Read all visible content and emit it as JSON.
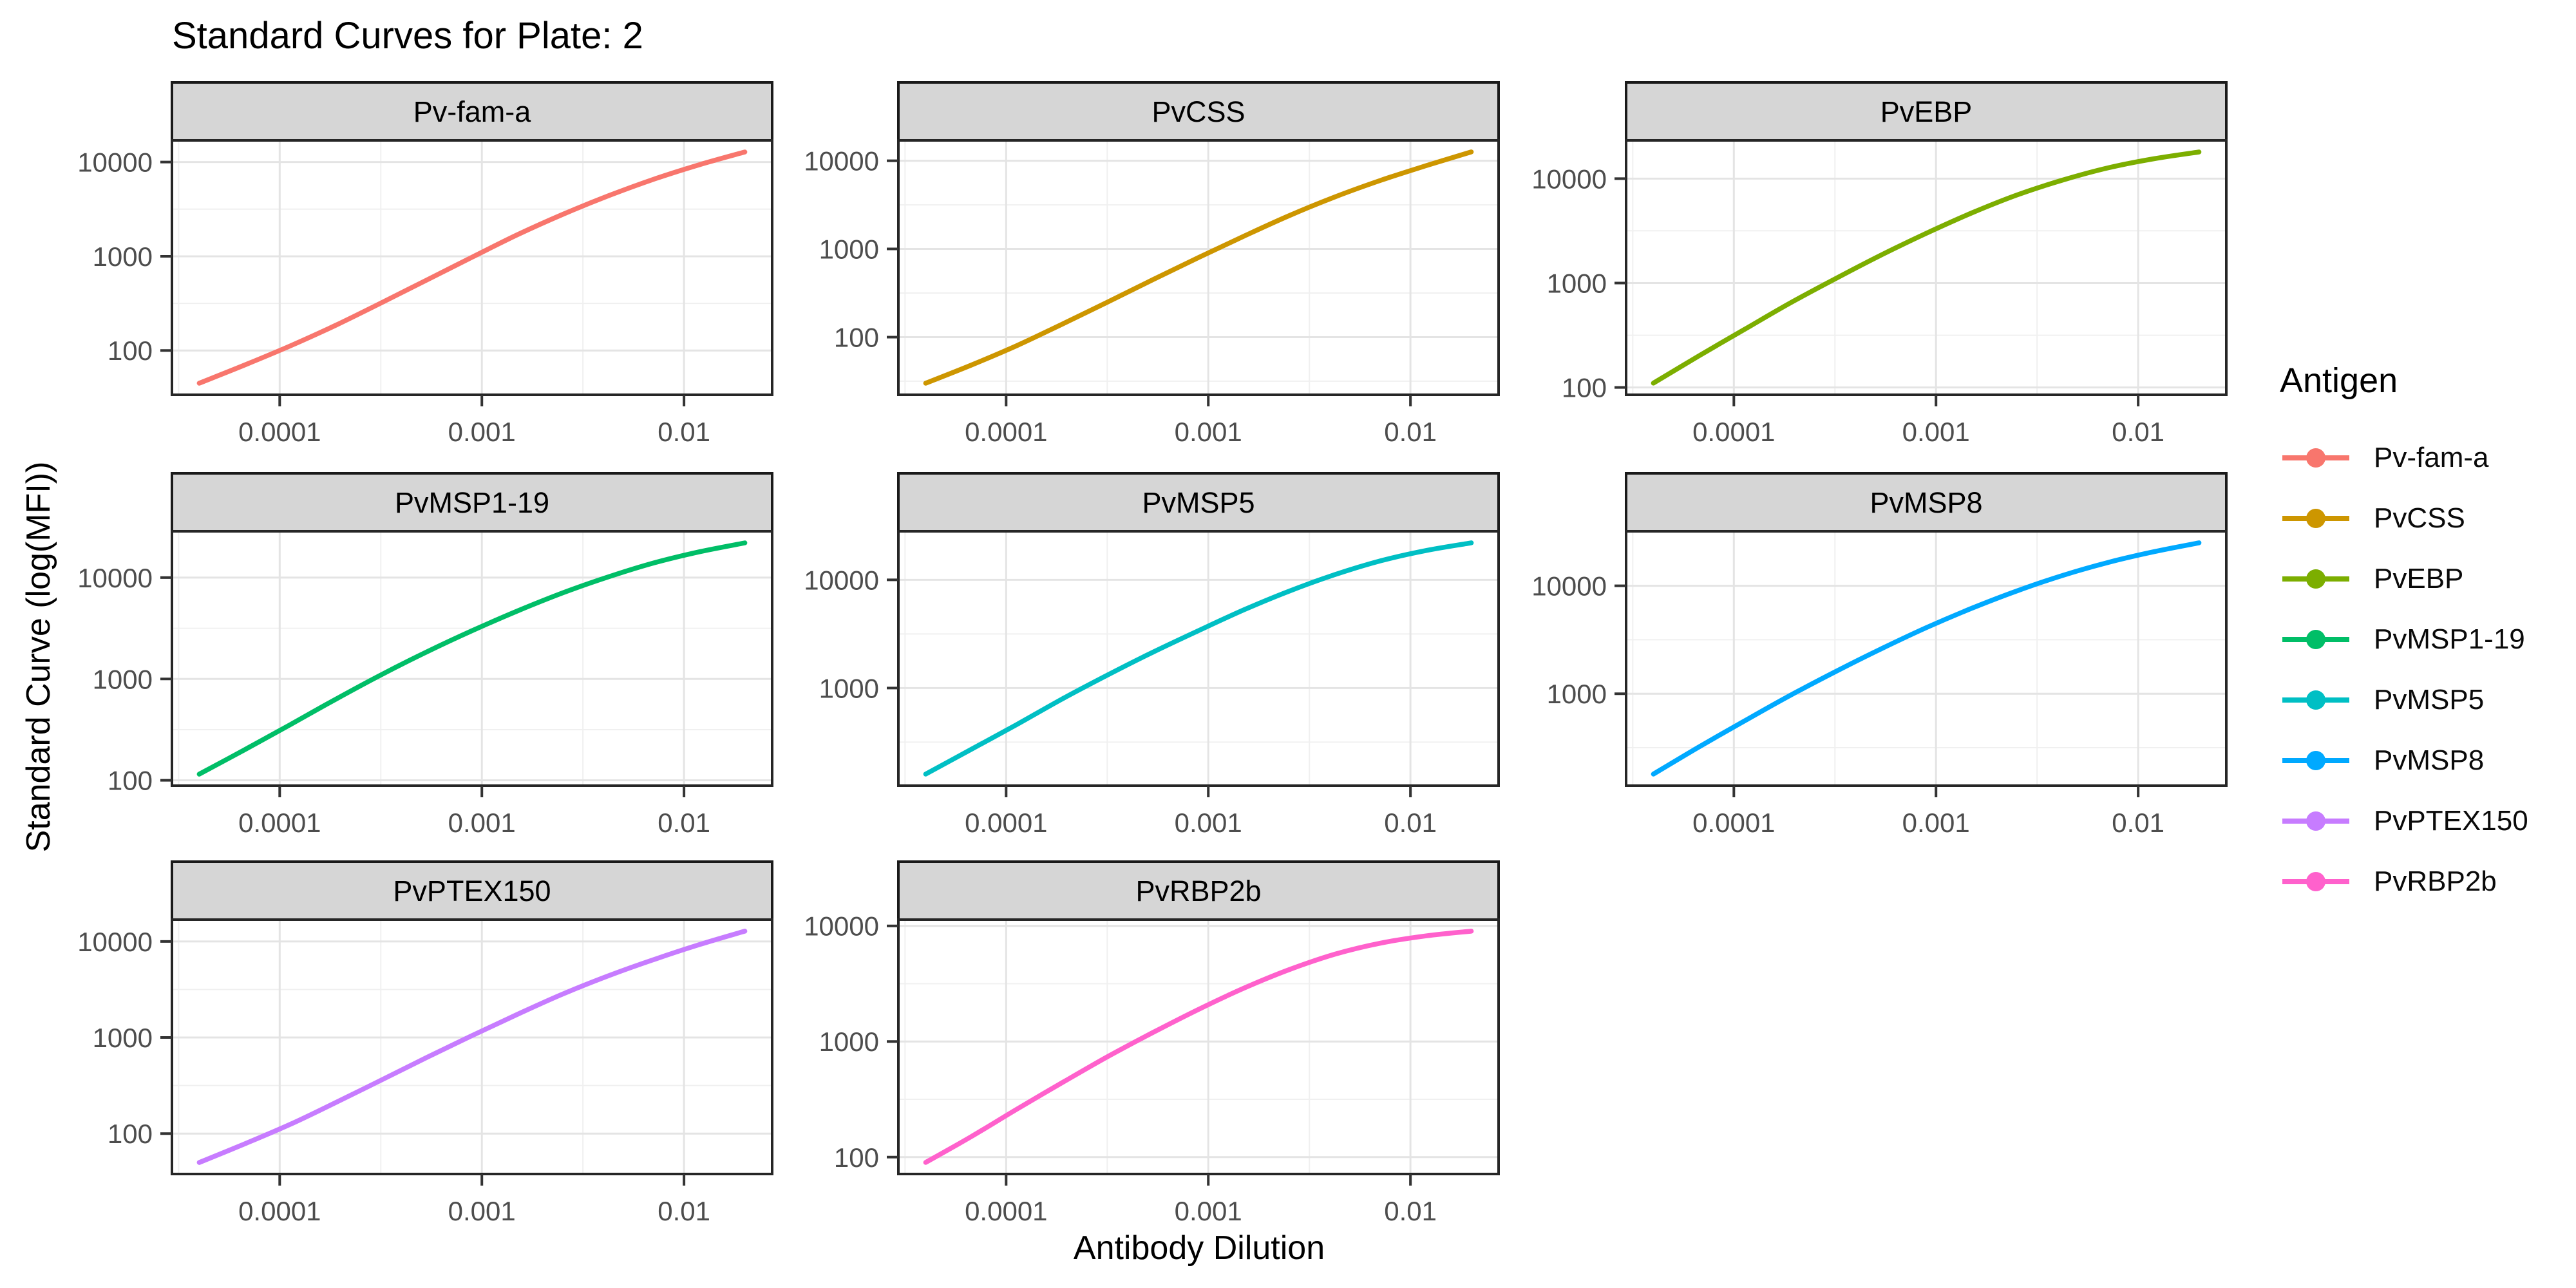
{
  "chart_data": {
    "type": "line",
    "title": "Standard Curves for Plate: 2",
    "xlabel": "Antibody Dilution",
    "ylabel": "Standard Curve (log(MFI))",
    "x_scale": "log10",
    "y_scale": "log10",
    "grid": "major-and-minor",
    "legend": {
      "title": "Antigen",
      "position": "right"
    },
    "xlim_log": [
      -4.533,
      -1.564
    ],
    "x_ticks": [
      {
        "value": 0.0001,
        "label": "0.0001"
      },
      {
        "value": 0.001,
        "label": "0.001"
      },
      {
        "value": 0.01,
        "label": "0.01"
      }
    ],
    "x": [
      4e-05,
      6.7e-05,
      0.000113,
      0.000189,
      0.000318,
      0.000534,
      0.000897,
      0.001506,
      0.002528,
      0.004245,
      0.007128,
      0.011969,
      0.02
    ],
    "facets": [
      {
        "name": "Pv-fam-a",
        "color": "#F8766D",
        "ylim_log": [
          1.53,
          4.23
        ],
        "y_ticks": [
          "100",
          "1000",
          "10000"
        ],
        "mfi": [
          45,
          70,
          112,
          185,
          320,
          560,
          980,
          1700,
          2800,
          4400,
          6600,
          9400,
          12800
        ]
      },
      {
        "name": "PvCSS",
        "color": "#CD9600",
        "ylim_log": [
          1.346,
          4.231
        ],
        "y_ticks": [
          "100",
          "1000",
          "10000"
        ],
        "mfi": [
          30,
          48,
          80,
          140,
          250,
          450,
          800,
          1400,
          2400,
          3900,
          6000,
          8800,
          12600
        ]
      },
      {
        "name": "PvEBP",
        "color": "#7CAE00",
        "ylim_log": [
          1.93,
          4.366
        ],
        "y_ticks": [
          "100",
          "1000",
          "10000"
        ],
        "mfi": [
          110,
          200,
          360,
          640,
          1100,
          1850,
          3000,
          4700,
          7000,
          9700,
          12700,
          15500,
          18000
        ]
      },
      {
        "name": "PvMSP1-19",
        "color": "#00BE67",
        "ylim_log": [
          1.947,
          4.457
        ],
        "y_ticks": [
          "100",
          "1000",
          "10000"
        ],
        "mfi": [
          115,
          200,
          355,
          630,
          1100,
          1850,
          3000,
          4700,
          7100,
          10200,
          14000,
          18000,
          22000
        ]
      },
      {
        "name": "PvMSP5",
        "color": "#00BFC4",
        "ylim_log": [
          2.097,
          4.449
        ],
        "y_ticks": [
          "1000",
          "10000"
        ],
        "mfi": [
          160,
          270,
          460,
          790,
          1320,
          2150,
          3400,
          5300,
          7900,
          11200,
          15000,
          18700,
          22000
        ]
      },
      {
        "name": "PvMSP8",
        "color": "#00A9FF",
        "ylim_log": [
          2.148,
          4.505
        ],
        "y_ticks": [
          "1000",
          "10000"
        ],
        "mfi": [
          180,
          320,
          560,
          960,
          1600,
          2600,
          4100,
          6200,
          9000,
          12500,
          16500,
          20700,
          25000
        ]
      },
      {
        "name": "PvPTEX150",
        "color": "#C77CFF",
        "ylim_log": [
          1.579,
          4.227
        ],
        "y_ticks": [
          "100",
          "1000",
          "10000"
        ],
        "mfi": [
          50,
          78,
          125,
          210,
          360,
          620,
          1050,
          1750,
          2850,
          4400,
          6500,
          9300,
          12800
        ]
      },
      {
        "name": "PvRBP2b",
        "color": "#FF61CC",
        "ylim_log": [
          1.854,
          4.054
        ],
        "y_ticks": [
          "100",
          "1000",
          "10000"
        ],
        "mfi": [
          90,
          150,
          260,
          440,
          740,
          1200,
          1900,
          2900,
          4200,
          5700,
          7100,
          8200,
          9000
        ]
      }
    ],
    "style": {
      "strip_fill": "#D6D6D6",
      "strip_border": "#1A1A1A",
      "panel_border": "#262626",
      "grid_major": "#E4E4E4",
      "grid_minor": "#F0F0F0",
      "tick_color": "#333333",
      "tick_text_color": "#4D4D4D"
    }
  }
}
